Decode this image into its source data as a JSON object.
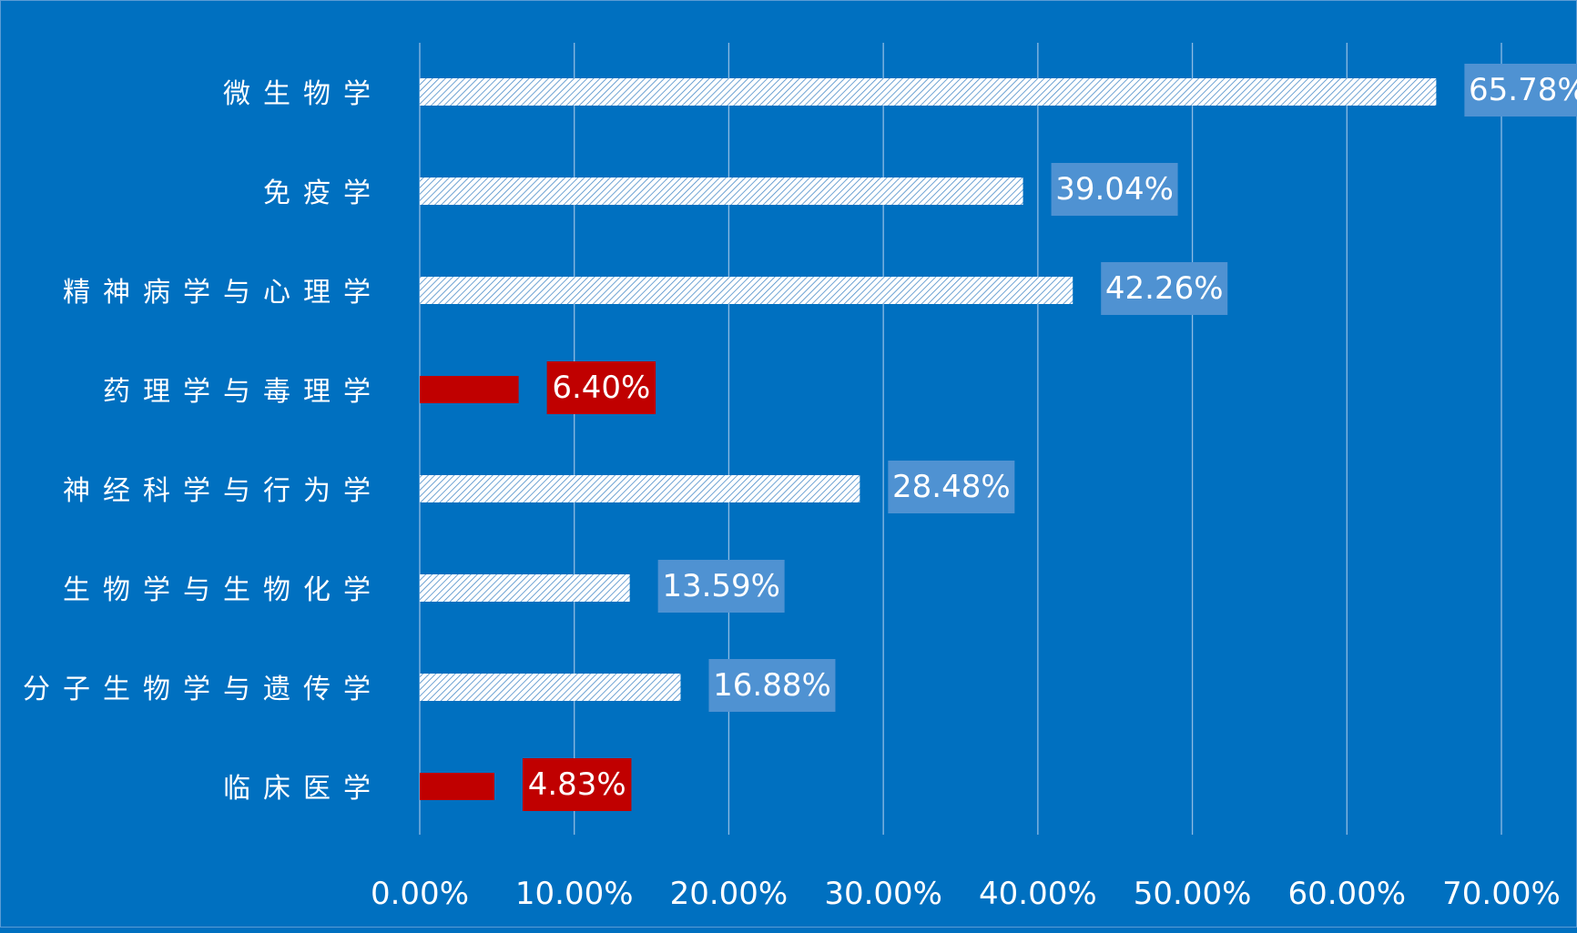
{
  "chart_data": {
    "type": "bar",
    "orientation": "horizontal",
    "categories": [
      "微生物学",
      "免疫学",
      "精神病学与心理学",
      "药理学与毒理学",
      "神经科学与行为学",
      "生物学与生物化学",
      "分子生物学与遗传学",
      "临床医学"
    ],
    "values": [
      65.78,
      39.04,
      42.26,
      6.4,
      28.48,
      13.59,
      16.88,
      4.83
    ],
    "value_labels": [
      "65.78%",
      "39.04%",
      "42.26%",
      "6.40%",
      "28.48%",
      "13.59%",
      "16.88%",
      "4.83%"
    ],
    "highlighted": [
      false,
      false,
      false,
      true,
      false,
      false,
      false,
      true
    ],
    "x_ticks": [
      "0.00%",
      "10.00%",
      "20.00%",
      "30.00%",
      "40.00%",
      "50.00%",
      "60.00%",
      "70.00%"
    ],
    "xlim": [
      0,
      70
    ],
    "grid": true,
    "legend": "none",
    "title": "",
    "xlabel": "",
    "ylabel": "",
    "colors": {
      "background": "#0070c0",
      "bar_fill": "#ffffff",
      "bar_hatch": "#4a8cc8",
      "highlight": "#c00000",
      "label_box": "#4f92d2",
      "gridline": "#8fbbe3",
      "text": "#ffffff"
    }
  }
}
